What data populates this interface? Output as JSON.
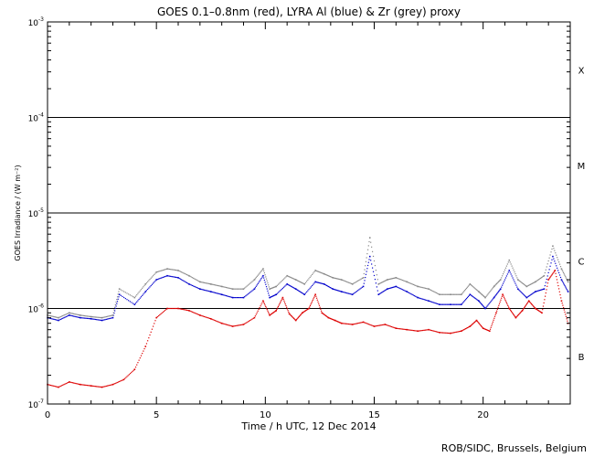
{
  "chart_data": {
    "type": "scatter",
    "title": "GOES 0.1–0.8nm (red), LYRA Al (blue) & Zr (grey) proxy",
    "xlabel": "Time / h UTC, 12 Dec 2014",
    "ylabel": "GOES Irradiance / (W m⁻²)",
    "credit": "ROB/SIDC, Brussels, Belgium",
    "x_range": [
      0,
      24
    ],
    "y_range_log10": [
      -7,
      -3
    ],
    "y_scale": "log",
    "x_ticks": [
      {
        "value": 0,
        "label": "0"
      },
      {
        "value": 5,
        "label": "5"
      },
      {
        "value": 10,
        "label": "10"
      },
      {
        "value": 15,
        "label": "15"
      },
      {
        "value": 20,
        "label": "20"
      }
    ],
    "y_ticks": [
      {
        "exp": -7,
        "base": "10",
        "sup": "-7"
      },
      {
        "exp": -6,
        "base": "10",
        "sup": "-6"
      },
      {
        "exp": -5,
        "base": "10",
        "sup": "-5"
      },
      {
        "exp": -4,
        "base": "10",
        "sup": "-4"
      },
      {
        "exp": -3,
        "base": "10",
        "sup": "-3"
      }
    ],
    "threshold_lines_log10": [
      -6,
      -5,
      -4
    ],
    "flare_classes": [
      {
        "label": "B",
        "log10_center": -6.5
      },
      {
        "label": "C",
        "log10_center": -5.5
      },
      {
        "label": "M",
        "log10_center": -4.5
      },
      {
        "label": "X",
        "log10_center": -3.5
      }
    ],
    "series": [
      {
        "color": "#dd0000",
        "x": [
          0,
          0.5,
          1.0,
          1.5,
          2.0,
          2.5,
          3.0,
          3.5,
          4.0,
          4.5,
          5.0,
          5.5,
          6.0,
          6.5,
          7.0,
          7.5,
          8.0,
          8.5,
          9.0,
          9.5,
          9.9,
          10.2,
          10.5,
          10.8,
          11.1,
          11.4,
          11.7,
          12.0,
          12.3,
          12.6,
          12.9,
          13.2,
          13.5,
          14.0,
          14.5,
          15.0,
          15.5,
          16.0,
          16.5,
          17.0,
          17.5,
          18.0,
          18.5,
          19.0,
          19.4,
          19.7,
          20.0,
          20.3,
          20.6,
          20.9,
          21.2,
          21.5,
          21.8,
          22.1,
          22.4,
          22.7,
          23.0,
          23.3,
          23.6,
          23.9
        ],
        "y": [
          1.6e-07,
          1.5e-07,
          1.7e-07,
          1.6e-07,
          1.55e-07,
          1.5e-07,
          1.6e-07,
          1.8e-07,
          2.3e-07,
          4e-07,
          8e-07,
          1e-06,
          1e-06,
          9.5e-07,
          8.5e-07,
          7.8e-07,
          7e-07,
          6.5e-07,
          6.8e-07,
          8e-07,
          1.2e-06,
          8.5e-07,
          9.5e-07,
          1.3e-06,
          8.8e-07,
          7.5e-07,
          9e-07,
          1e-06,
          1.4e-06,
          9e-07,
          8e-07,
          7.5e-07,
          7e-07,
          6.8e-07,
          7.2e-07,
          6.5e-07,
          6.8e-07,
          6.2e-07,
          6e-07,
          5.8e-07,
          6e-07,
          5.6e-07,
          5.5e-07,
          5.8e-07,
          6.5e-07,
          7.5e-07,
          6.2e-07,
          5.8e-07,
          9e-07,
          1.4e-06,
          1e-06,
          8e-07,
          9.5e-07,
          1.2e-06,
          1e-06,
          9e-07,
          2e-06,
          2.5e-06,
          1.2e-06,
          7e-07
        ]
      },
      {
        "color": "#0000cc",
        "x": [
          0,
          0.5,
          1.0,
          1.5,
          2.0,
          2.5,
          3.0,
          3.3,
          4.0,
          4.5,
          5.0,
          5.5,
          6.0,
          6.5,
          7.0,
          7.5,
          8.0,
          8.5,
          9.0,
          9.5,
          9.9,
          10.2,
          10.5,
          11.0,
          11.4,
          11.8,
          12.3,
          12.7,
          13.1,
          13.5,
          14.0,
          14.5,
          14.8,
          15.2,
          15.6,
          16.0,
          16.5,
          17.0,
          17.5,
          18.0,
          18.5,
          19.0,
          19.4,
          19.8,
          20.1,
          20.5,
          20.8,
          21.2,
          21.6,
          22.0,
          22.4,
          22.8,
          23.2,
          23.6,
          23.9
        ],
        "y": [
          8e-07,
          7.5e-07,
          8.5e-07,
          8e-07,
          7.8e-07,
          7.5e-07,
          8e-07,
          1.4e-06,
          1.1e-06,
          1.5e-06,
          2e-06,
          2.2e-06,
          2.1e-06,
          1.8e-06,
          1.6e-06,
          1.5e-06,
          1.4e-06,
          1.3e-06,
          1.3e-06,
          1.6e-06,
          2.2e-06,
          1.3e-06,
          1.4e-06,
          1.8e-06,
          1.6e-06,
          1.4e-06,
          1.9e-06,
          1.8e-06,
          1.6e-06,
          1.5e-06,
          1.4e-06,
          1.7e-06,
          3.5e-06,
          1.4e-06,
          1.6e-06,
          1.7e-06,
          1.5e-06,
          1.3e-06,
          1.2e-06,
          1.1e-06,
          1.1e-06,
          1.1e-06,
          1.4e-06,
          1.2e-06,
          1e-06,
          1.3e-06,
          1.6e-06,
          2.5e-06,
          1.6e-06,
          1.3e-06,
          1.5e-06,
          1.6e-06,
          3.5e-06,
          2e-06,
          1.5e-06
        ]
      },
      {
        "color": "#888888",
        "x": [
          0,
          0.5,
          1.0,
          1.5,
          2.0,
          2.5,
          3.0,
          3.3,
          4.0,
          4.5,
          5.0,
          5.5,
          6.0,
          6.5,
          7.0,
          7.5,
          8.0,
          8.5,
          9.0,
          9.5,
          9.9,
          10.2,
          10.5,
          11.0,
          11.4,
          11.8,
          12.3,
          12.7,
          13.1,
          13.5,
          14.0,
          14.5,
          14.8,
          15.2,
          15.6,
          16.0,
          16.5,
          17.0,
          17.5,
          18.0,
          18.5,
          19.0,
          19.4,
          19.8,
          20.1,
          20.5,
          20.8,
          21.2,
          21.6,
          22.0,
          22.4,
          22.8,
          23.2,
          23.6,
          23.9
        ],
        "y": [
          8.5e-07,
          8e-07,
          9e-07,
          8.5e-07,
          8.2e-07,
          8e-07,
          8.5e-07,
          1.6e-06,
          1.3e-06,
          1.8e-06,
          2.4e-06,
          2.6e-06,
          2.5e-06,
          2.2e-06,
          1.9e-06,
          1.8e-06,
          1.7e-06,
          1.6e-06,
          1.6e-06,
          2e-06,
          2.6e-06,
          1.6e-06,
          1.7e-06,
          2.2e-06,
          2e-06,
          1.8e-06,
          2.5e-06,
          2.3e-06,
          2.1e-06,
          2e-06,
          1.8e-06,
          2.1e-06,
          5.5e-06,
          1.8e-06,
          2e-06,
          2.1e-06,
          1.9e-06,
          1.7e-06,
          1.6e-06,
          1.4e-06,
          1.4e-06,
          1.4e-06,
          1.8e-06,
          1.5e-06,
          1.3e-06,
          1.7e-06,
          2e-06,
          3.2e-06,
          2e-06,
          1.7e-06,
          1.9e-06,
          2.2e-06,
          4.5e-06,
          2.6e-06,
          1.9e-06
        ]
      }
    ]
  }
}
